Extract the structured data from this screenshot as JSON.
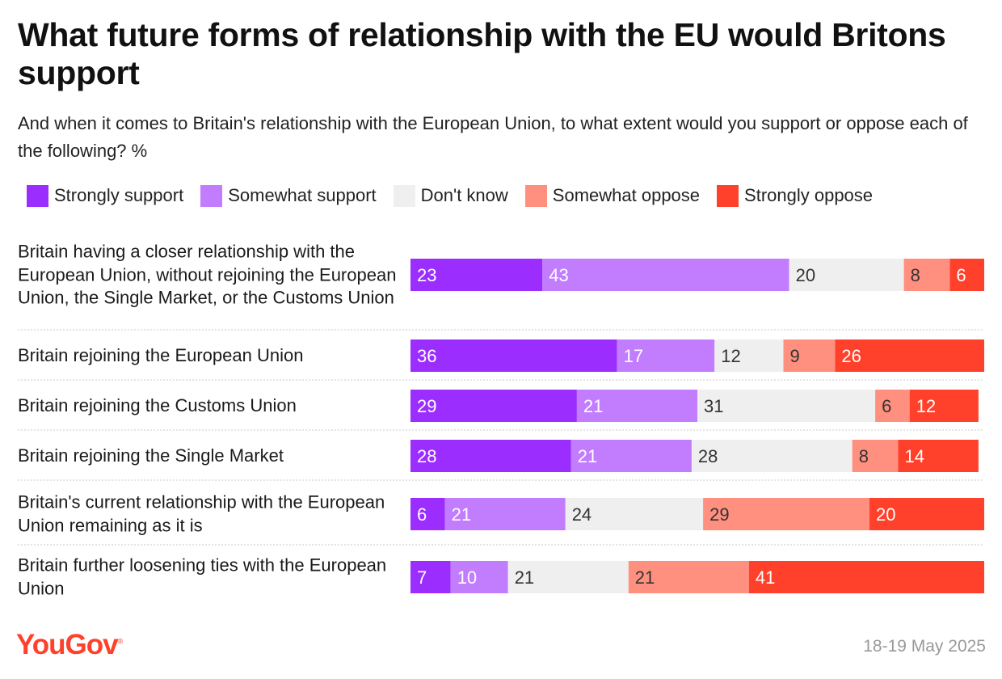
{
  "chart_data": {
    "type": "bar",
    "orientation": "horizontal",
    "stacked": true,
    "title": "What future forms of relationship with the EU would Britons support",
    "subtitle": "And when it comes to Britain's relationship with the European Union, to what extent would you support or oppose each of the following? %",
    "xlim": [
      0,
      100
    ],
    "categories": [
      "Britain having a closer relationship with the European Union, without rejoining the European Union, the Single Market, or the Customs Union",
      "Britain rejoining the European Union",
      "Britain rejoining the Customs Union",
      "Britain rejoining the Single Market",
      "Britain's current relationship with the European Union remaining as it is",
      "Britain further loosening ties with the European Union"
    ],
    "series": [
      {
        "name": "Strongly support",
        "color": "#9b2eff",
        "text_color": "#ffffff",
        "values": [
          23,
          36,
          29,
          28,
          6,
          7
        ]
      },
      {
        "name": "Somewhat support",
        "color": "#c27dff",
        "text_color": "#ffffff",
        "values": [
          43,
          17,
          21,
          21,
          21,
          10
        ]
      },
      {
        "name": "Don't know",
        "color": "#efefef",
        "text_color": "#333333",
        "values": [
          20,
          12,
          31,
          28,
          24,
          21
        ]
      },
      {
        "name": "Somewhat oppose",
        "color": "#ff8f7e",
        "text_color": "#333333",
        "values": [
          8,
          9,
          6,
          8,
          29,
          21
        ]
      },
      {
        "name": "Strongly oppose",
        "color": "#ff412c",
        "text_color": "#ffffff",
        "values": [
          6,
          26,
          12,
          14,
          20,
          41
        ]
      }
    ],
    "legend_position": "top-left"
  },
  "footer": {
    "brand": "YouGov",
    "registered_mark": "®",
    "brand_color": "#ff412c",
    "date": "18-19 May 2025"
  }
}
